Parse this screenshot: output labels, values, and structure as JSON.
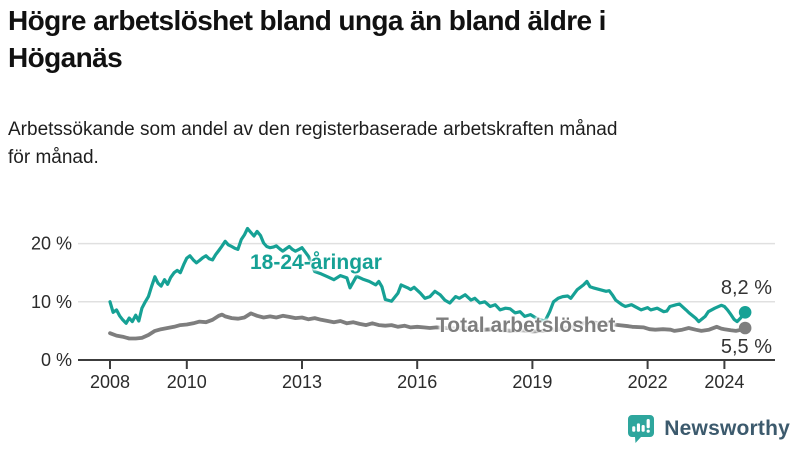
{
  "header": {
    "title_lines": [
      "Högre arbetslöshet bland unga än bland äldre i",
      "Höganäs"
    ],
    "subtitle_lines": [
      "Arbetssökande som andel av den registerbaserade arbetskraften månad",
      "för månad."
    ]
  },
  "chart_data": {
    "type": "line",
    "title": "Högre arbetslöshet bland unga än bland äldre i Höganäs",
    "subtitle": "Arbetssökande som andel av den registerbaserade arbetskraften månad för månad.",
    "x_unit": "decimal year, monthly observations",
    "y_unit": "percent of registered labour force",
    "xlim": [
      2008.0,
      2024.54
    ],
    "ylim": [
      0,
      24
    ],
    "grid": "horizontal",
    "legend_position": "inline-labels",
    "x_ticks": [
      {
        "value": 2008,
        "label": "2008"
      },
      {
        "value": 2010,
        "label": "2010"
      },
      {
        "value": 2013,
        "label": "2013"
      },
      {
        "value": 2016,
        "label": "2016"
      },
      {
        "value": 2019,
        "label": "2019"
      },
      {
        "value": 2022,
        "label": "2022"
      },
      {
        "value": 2024,
        "label": "2024"
      }
    ],
    "y_ticks": [
      {
        "value": 0,
        "label": "0 %"
      },
      {
        "value": 10,
        "label": "10 %"
      },
      {
        "value": 20,
        "label": "20 %"
      }
    ],
    "series": [
      {
        "id": "young",
        "name": "18-24-åringar",
        "inline_label": "18-24-åringar",
        "color": "#16a195",
        "end_label": "8,2 %",
        "end_value": 8.2,
        "points": [
          [
            2008.0,
            10.0
          ],
          [
            2008.08,
            8.2
          ],
          [
            2008.17,
            8.6
          ],
          [
            2008.25,
            7.6
          ],
          [
            2008.33,
            6.9
          ],
          [
            2008.42,
            6.3
          ],
          [
            2008.5,
            7.2
          ],
          [
            2008.58,
            6.6
          ],
          [
            2008.67,
            7.7
          ],
          [
            2008.75,
            6.7
          ],
          [
            2008.83,
            8.9
          ],
          [
            2008.92,
            10.0
          ],
          [
            2009.0,
            10.9
          ],
          [
            2009.08,
            12.6
          ],
          [
            2009.17,
            14.3
          ],
          [
            2009.25,
            13.2
          ],
          [
            2009.33,
            12.7
          ],
          [
            2009.42,
            13.8
          ],
          [
            2009.5,
            13.0
          ],
          [
            2009.58,
            14.2
          ],
          [
            2009.67,
            15.0
          ],
          [
            2009.75,
            15.4
          ],
          [
            2009.83,
            15.0
          ],
          [
            2009.92,
            16.4
          ],
          [
            2010.0,
            17.5
          ],
          [
            2010.08,
            17.9
          ],
          [
            2010.17,
            17.2
          ],
          [
            2010.25,
            16.7
          ],
          [
            2010.33,
            17.1
          ],
          [
            2010.42,
            17.6
          ],
          [
            2010.5,
            17.9
          ],
          [
            2010.58,
            17.4
          ],
          [
            2010.67,
            17.2
          ],
          [
            2010.75,
            18.1
          ],
          [
            2010.83,
            18.8
          ],
          [
            2010.92,
            19.6
          ],
          [
            2011.0,
            20.4
          ],
          [
            2011.08,
            19.8
          ],
          [
            2011.17,
            19.5
          ],
          [
            2011.25,
            19.2
          ],
          [
            2011.33,
            19.0
          ],
          [
            2011.42,
            20.7
          ],
          [
            2011.5,
            21.5
          ],
          [
            2011.58,
            22.6
          ],
          [
            2011.67,
            21.9
          ],
          [
            2011.75,
            21.3
          ],
          [
            2011.83,
            22.1
          ],
          [
            2011.92,
            21.4
          ],
          [
            2012.0,
            20.1
          ],
          [
            2012.08,
            19.5
          ],
          [
            2012.17,
            19.3
          ],
          [
            2012.25,
            19.4
          ],
          [
            2012.33,
            19.6
          ],
          [
            2012.42,
            19.1
          ],
          [
            2012.5,
            18.7
          ],
          [
            2012.58,
            19.1
          ],
          [
            2012.67,
            19.5
          ],
          [
            2012.75,
            19.0
          ],
          [
            2012.83,
            18.7
          ],
          [
            2012.92,
            19.0
          ],
          [
            2013.0,
            19.3
          ],
          [
            2013.17,
            17.8
          ],
          [
            2013.33,
            15.2
          ],
          [
            2013.5,
            14.8
          ],
          [
            2013.67,
            14.3
          ],
          [
            2013.83,
            13.8
          ],
          [
            2014.0,
            14.5
          ],
          [
            2014.17,
            14.1
          ],
          [
            2014.25,
            12.4
          ],
          [
            2014.42,
            14.4
          ],
          [
            2014.58,
            13.9
          ],
          [
            2014.75,
            13.5
          ],
          [
            2014.92,
            12.9
          ],
          [
            2015.0,
            13.5
          ],
          [
            2015.08,
            12.6
          ],
          [
            2015.17,
            10.4
          ],
          [
            2015.33,
            10.1
          ],
          [
            2015.5,
            11.5
          ],
          [
            2015.58,
            12.9
          ],
          [
            2015.75,
            12.4
          ],
          [
            2015.83,
            12.1
          ],
          [
            2015.92,
            12.5
          ],
          [
            2016.08,
            11.5
          ],
          [
            2016.2,
            10.6
          ],
          [
            2016.33,
            10.9
          ],
          [
            2016.46,
            11.8
          ],
          [
            2016.6,
            11.2
          ],
          [
            2016.72,
            10.3
          ],
          [
            2016.85,
            9.8
          ],
          [
            2017.0,
            10.9
          ],
          [
            2017.1,
            10.6
          ],
          [
            2017.25,
            11.2
          ],
          [
            2017.4,
            10.3
          ],
          [
            2017.5,
            10.6
          ],
          [
            2017.63,
            9.8
          ],
          [
            2017.76,
            10.0
          ],
          [
            2017.9,
            9.2
          ],
          [
            2018.03,
            9.5
          ],
          [
            2018.16,
            8.6
          ],
          [
            2018.3,
            8.9
          ],
          [
            2018.42,
            8.8
          ],
          [
            2018.55,
            8.1
          ],
          [
            2018.68,
            8.3
          ],
          [
            2018.8,
            7.5
          ],
          [
            2018.95,
            7.8
          ],
          [
            2019.1,
            7.2
          ],
          [
            2019.2,
            6.9
          ],
          [
            2019.33,
            6.7
          ],
          [
            2019.45,
            8.3
          ],
          [
            2019.55,
            10.0
          ],
          [
            2019.67,
            10.6
          ],
          [
            2019.79,
            10.9
          ],
          [
            2019.92,
            11.0
          ],
          [
            2020.0,
            10.6
          ],
          [
            2020.17,
            12.1
          ],
          [
            2020.33,
            12.9
          ],
          [
            2020.42,
            13.5
          ],
          [
            2020.5,
            12.6
          ],
          [
            2020.58,
            12.4
          ],
          [
            2020.75,
            12.1
          ],
          [
            2020.92,
            11.8
          ],
          [
            2021.0,
            11.9
          ],
          [
            2021.08,
            11.2
          ],
          [
            2021.17,
            10.3
          ],
          [
            2021.33,
            9.5
          ],
          [
            2021.42,
            9.2
          ],
          [
            2021.58,
            9.5
          ],
          [
            2021.75,
            8.9
          ],
          [
            2021.83,
            8.6
          ],
          [
            2022.0,
            9.0
          ],
          [
            2022.08,
            8.6
          ],
          [
            2022.25,
            8.9
          ],
          [
            2022.42,
            8.3
          ],
          [
            2022.5,
            8.4
          ],
          [
            2022.58,
            9.2
          ],
          [
            2022.75,
            9.5
          ],
          [
            2022.83,
            9.6
          ],
          [
            2023.0,
            8.6
          ],
          [
            2023.08,
            8.1
          ],
          [
            2023.25,
            7.2
          ],
          [
            2023.33,
            6.6
          ],
          [
            2023.5,
            7.5
          ],
          [
            2023.58,
            8.3
          ],
          [
            2023.75,
            8.9
          ],
          [
            2023.92,
            9.4
          ],
          [
            2024.0,
            9.2
          ],
          [
            2024.08,
            8.6
          ],
          [
            2024.17,
            7.8
          ],
          [
            2024.25,
            7.0
          ],
          [
            2024.33,
            6.6
          ],
          [
            2024.42,
            7.2
          ],
          [
            2024.54,
            8.2
          ]
        ]
      },
      {
        "id": "total",
        "name": "Total arbetslöshet",
        "inline_label": "Total arbetslöshet",
        "color": "#7e7e7e",
        "end_label": "5,5 %",
        "end_value": 5.5,
        "points": [
          [
            2008.0,
            4.6
          ],
          [
            2008.17,
            4.2
          ],
          [
            2008.33,
            4.0
          ],
          [
            2008.5,
            3.7
          ],
          [
            2008.67,
            3.7
          ],
          [
            2008.83,
            3.8
          ],
          [
            2009.0,
            4.3
          ],
          [
            2009.17,
            5.0
          ],
          [
            2009.33,
            5.3
          ],
          [
            2009.5,
            5.5
          ],
          [
            2009.67,
            5.7
          ],
          [
            2009.83,
            6.0
          ],
          [
            2010.0,
            6.1
          ],
          [
            2010.17,
            6.3
          ],
          [
            2010.33,
            6.6
          ],
          [
            2010.5,
            6.5
          ],
          [
            2010.67,
            6.9
          ],
          [
            2010.83,
            7.6
          ],
          [
            2010.92,
            7.8
          ],
          [
            2011.0,
            7.5
          ],
          [
            2011.17,
            7.2
          ],
          [
            2011.33,
            7.1
          ],
          [
            2011.5,
            7.3
          ],
          [
            2011.67,
            8.0
          ],
          [
            2011.83,
            7.6
          ],
          [
            2012.0,
            7.3
          ],
          [
            2012.17,
            7.5
          ],
          [
            2012.33,
            7.3
          ],
          [
            2012.5,
            7.6
          ],
          [
            2012.67,
            7.4
          ],
          [
            2012.83,
            7.2
          ],
          [
            2013.0,
            7.3
          ],
          [
            2013.17,
            7.0
          ],
          [
            2013.33,
            7.2
          ],
          [
            2013.5,
            6.9
          ],
          [
            2013.67,
            6.7
          ],
          [
            2013.83,
            6.5
          ],
          [
            2014.0,
            6.7
          ],
          [
            2014.17,
            6.3
          ],
          [
            2014.33,
            6.5
          ],
          [
            2014.5,
            6.2
          ],
          [
            2014.67,
            6.0
          ],
          [
            2014.83,
            6.3
          ],
          [
            2015.0,
            6.0
          ],
          [
            2015.17,
            5.9
          ],
          [
            2015.33,
            6.0
          ],
          [
            2015.5,
            5.7
          ],
          [
            2015.67,
            5.9
          ],
          [
            2015.83,
            5.6
          ],
          [
            2016.0,
            5.7
          ],
          [
            2016.17,
            5.6
          ],
          [
            2016.33,
            5.5
          ],
          [
            2016.5,
            5.6
          ],
          [
            2016.75,
            5.5
          ],
          [
            2017.0,
            5.4
          ],
          [
            2017.25,
            5.5
          ],
          [
            2017.5,
            5.3
          ],
          [
            2017.75,
            5.2
          ],
          [
            2018.0,
            5.3
          ],
          [
            2018.25,
            5.1
          ],
          [
            2018.5,
            5.0
          ],
          [
            2018.75,
            5.1
          ],
          [
            2019.0,
            4.9
          ],
          [
            2019.25,
            5.0
          ],
          [
            2019.5,
            5.2
          ],
          [
            2019.75,
            5.4
          ],
          [
            2020.0,
            5.5
          ],
          [
            2020.25,
            6.2
          ],
          [
            2020.5,
            6.5
          ],
          [
            2020.75,
            6.3
          ],
          [
            2021.0,
            6.2
          ],
          [
            2021.25,
            6.0
          ],
          [
            2021.5,
            5.8
          ],
          [
            2021.6,
            5.7
          ],
          [
            2021.9,
            5.6
          ],
          [
            2022.05,
            5.3
          ],
          [
            2022.2,
            5.2
          ],
          [
            2022.4,
            5.3
          ],
          [
            2022.6,
            5.2
          ],
          [
            2022.7,
            5.0
          ],
          [
            2022.9,
            5.2
          ],
          [
            2023.07,
            5.5
          ],
          [
            2023.25,
            5.2
          ],
          [
            2023.4,
            5.0
          ],
          [
            2023.6,
            5.2
          ],
          [
            2023.8,
            5.7
          ],
          [
            2023.92,
            5.4
          ],
          [
            2024.0,
            5.3
          ],
          [
            2024.17,
            5.1
          ],
          [
            2024.3,
            5.0
          ],
          [
            2024.45,
            5.2
          ],
          [
            2024.54,
            5.5
          ]
        ]
      }
    ]
  },
  "footer": {
    "brand": "Newsworthy",
    "logo_icon": "bar-chart-speech-bubble-icon",
    "logo_color": "#2ea69d",
    "wordmark_color": "#3c5a6d"
  },
  "colors": {
    "accent_teal": "#16a195",
    "series_gray": "#7e7e7e",
    "axis": "#3c3c3c",
    "grid": "#e0e0e0",
    "tick_text": "#2b2b2b",
    "value_text": "#333333"
  }
}
